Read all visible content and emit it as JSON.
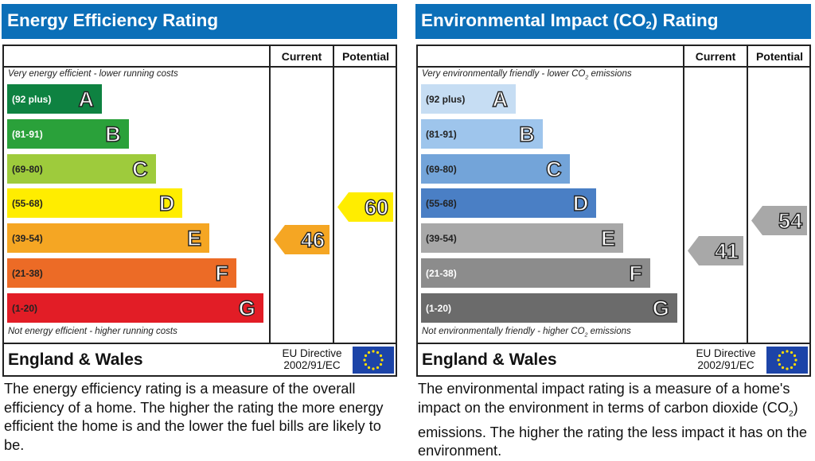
{
  "chart_data": [
    {
      "type": "bar",
      "title": "Energy Efficiency Rating",
      "columns": [
        "Current",
        "Potential"
      ],
      "note_top": "Very energy efficient - lower running costs",
      "note_bottom": "Not energy efficient - higher running costs",
      "bands": [
        {
          "letter": "A",
          "range": "(92 plus)",
          "color": "#0e8241",
          "text_color": "#ffffff"
        },
        {
          "letter": "B",
          "range": "(81-91)",
          "color": "#2aa13a",
          "text_color": "#ffffff"
        },
        {
          "letter": "C",
          "range": "(69-80)",
          "color": "#9ecb3c",
          "text_color": "#222222"
        },
        {
          "letter": "D",
          "range": "(55-68)",
          "color": "#ffed00",
          "text_color": "#222222"
        },
        {
          "letter": "E",
          "range": "(39-54)",
          "color": "#f5a623",
          "text_color": "#222222"
        },
        {
          "letter": "F",
          "range": "(21-38)",
          "color": "#ec6b26",
          "text_color": "#222222"
        },
        {
          "letter": "G",
          "range": "(1-20)",
          "color": "#e21d26",
          "text_color": "#222222"
        }
      ],
      "current": {
        "value": 46,
        "band": "E",
        "color": "#f5a623"
      },
      "potential": {
        "value": 60,
        "band": "D",
        "color": "#ffed00"
      }
    },
    {
      "type": "bar",
      "title": "Environmental Impact (CO2) Rating",
      "columns": [
        "Current",
        "Potential"
      ],
      "note_top": "Very environmentally friendly - lower CO2 emissions",
      "note_bottom": "Not environmentally friendly - higher CO2 emissions",
      "bands": [
        {
          "letter": "A",
          "range": "(92 plus)",
          "color": "#c6ddf3",
          "text_color": "#222222"
        },
        {
          "letter": "B",
          "range": "(81-91)",
          "color": "#9ec5ec",
          "text_color": "#222222"
        },
        {
          "letter": "C",
          "range": "(69-80)",
          "color": "#73a4d9",
          "text_color": "#222222"
        },
        {
          "letter": "D",
          "range": "(55-68)",
          "color": "#4a7fc5",
          "text_color": "#222222"
        },
        {
          "letter": "E",
          "range": "(39-54)",
          "color": "#a8a8a8",
          "text_color": "#222222"
        },
        {
          "letter": "F",
          "range": "(21-38)",
          "color": "#8c8c8c",
          "text_color": "#ffffff"
        },
        {
          "letter": "G",
          "range": "(1-20)",
          "color": "#6b6b6b",
          "text_color": "#ffffff"
        }
      ],
      "current": {
        "value": 41,
        "band": "E",
        "color": "#a8a8a8"
      },
      "potential": {
        "value": 54,
        "band": "E",
        "color": "#a8a8a8"
      }
    }
  ],
  "energy": {
    "title": "Energy Efficiency Rating",
    "col_current": "Current",
    "col_potential": "Potential",
    "note_top": "Very energy efficient - lower running costs",
    "note_bottom": "Not energy efficient - higher running costs",
    "region": "England & Wales",
    "directive_line1": "EU Directive",
    "directive_line2": "2002/91/EC",
    "description": "The energy efficiency rating is a measure of the overall efficiency of a home. The higher the rating the more energy efficient the home is and the lower the fuel bills are likely to be."
  },
  "environment": {
    "title_pre": "Environmental Impact (CO",
    "title_sub": "2",
    "title_post": ") Rating",
    "col_current": "Current",
    "col_potential": "Potential",
    "note_top_pre": "Very environmentally friendly - lower CO",
    "note_top_sub": "2",
    "note_top_post": " emissions",
    "note_bottom_pre": "Not environmentally friendly - higher CO",
    "note_bottom_sub": "2",
    "note_bottom_post": " emissions",
    "region": "England & Wales",
    "directive_line1": "EU Directive",
    "directive_line2": "2002/91/EC",
    "description_pre": "The environmental impact rating is a measure of a home's impact on the environment in terms of carbon dioxide (CO",
    "description_sub": "2",
    "description_post": ") emissions. The higher the rating the less impact it has on the environment."
  },
  "icons": {
    "flag": "eu-flag-icon"
  }
}
